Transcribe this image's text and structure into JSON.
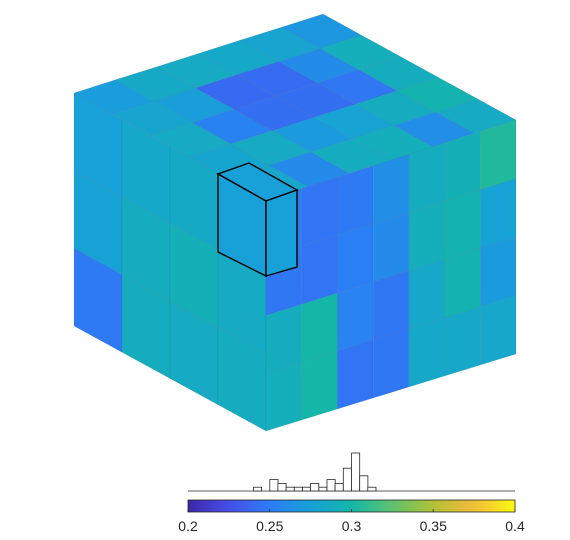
{
  "chart_data": {
    "type": "heatmap",
    "description_free": true,
    "colormap": "parula",
    "clim": [
      0.2,
      0.4
    ],
    "colorbar": {
      "orientation": "horizontal",
      "placement": "bottom",
      "ticks": [
        0.2,
        0.25,
        0.3,
        0.35,
        0.4
      ],
      "tick_labels": [
        "0.2",
        "0.25",
        "0.3",
        "0.35",
        "0.4"
      ]
    },
    "voxel_grid": {
      "left_face": [
        [
          0.274,
          0.283,
          0.284,
          0.282
        ],
        [
          0.276,
          0.288,
          0.292,
          0.285
        ],
        [
          0.249,
          0.289,
          0.286,
          0.288
        ]
      ],
      "right_face": [
        [
          0.25,
          0.246,
          0.249,
          0.263,
          0.287,
          0.292,
          0.304
        ],
        [
          0.247,
          0.246,
          0.252,
          0.26,
          0.29,
          0.296,
          0.276
        ],
        [
          0.289,
          0.3,
          0.255,
          0.247,
          0.282,
          0.296,
          0.271
        ],
        [
          0.29,
          0.3,
          0.246,
          0.247,
          0.283,
          0.283,
          0.282
        ]
      ],
      "top_face": [
        [
          0.272,
          0.284,
          0.286,
          0.283,
          0.279,
          0.268
        ],
        [
          0.279,
          0.273,
          0.24,
          0.241,
          0.261,
          0.29
        ],
        [
          0.285,
          0.254,
          0.243,
          0.243,
          0.247,
          0.289
        ],
        [
          0.28,
          0.286,
          0.271,
          0.277,
          0.287,
          0.296
        ],
        [
          0.282,
          0.26,
          0.287,
          0.29,
          0.262,
          0.285
        ]
      ],
      "highlighted_voxel_value": 0.275
    },
    "histogram": {
      "bin_width": 0.005,
      "bins_start": 0.24,
      "counts": [
        1,
        0,
        3,
        2,
        1,
        1,
        1,
        2,
        1,
        3,
        2,
        6,
        10,
        4,
        1
      ]
    }
  }
}
